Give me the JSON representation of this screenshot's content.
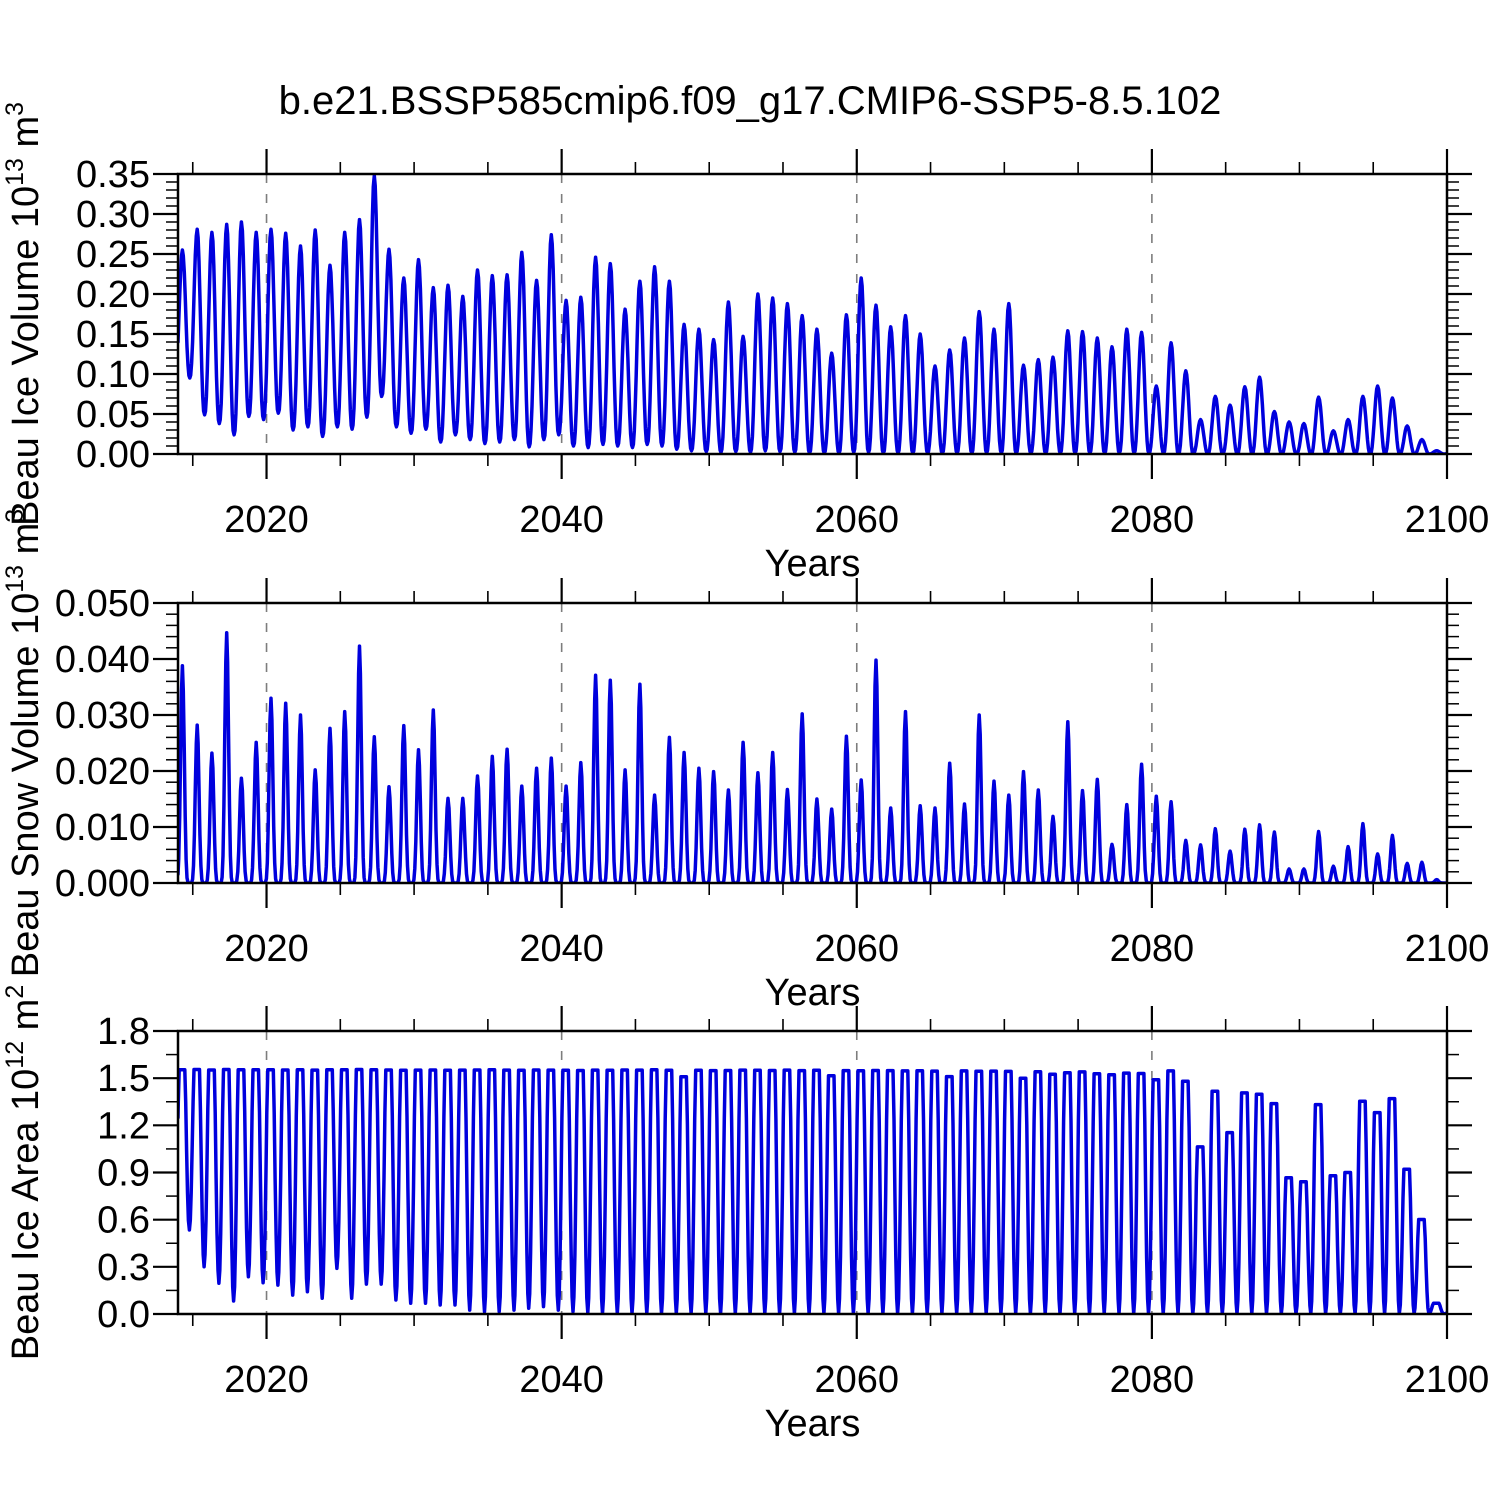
{
  "title": "b.e21.BSSP585cmip6.f09_g17.CMIP6-SSP5-8.5.102",
  "style": {
    "line_color": "#0000dd",
    "grid_color": "#7d7d7d",
    "axis_color": "#000000",
    "background": "#ffffff"
  },
  "chart_data": [
    {
      "type": "line",
      "panel": "beau-ice-volume",
      "ylabel": "Beau Ice Volume 10^{13} m^{3}",
      "xlabel": "Years",
      "xlim": [
        2014,
        2100
      ],
      "ylim": [
        0,
        0.35
      ],
      "grid": "vertical-dashed",
      "grid_years": [
        2020,
        2040,
        2060,
        2080
      ],
      "xticks_major": [
        2020,
        2040,
        2060,
        2080,
        2100
      ],
      "xtick_labels": [
        "2020",
        "2040",
        "2060",
        "2080",
        "2100"
      ],
      "xtick_minor_step": 5,
      "yticks_major": [
        0,
        0.05,
        0.1,
        0.15,
        0.2,
        0.25,
        0.3,
        0.35
      ],
      "ytick_labels": [
        "0.00",
        "0.05",
        "0.10",
        "0.15",
        "0.20",
        "0.25",
        "0.30",
        "0.35"
      ],
      "ytick_minor_step": 0.01,
      "years_start": 2014,
      "years_end": 2100,
      "annual_max": [
        0.255,
        0.281,
        0.277,
        0.287,
        0.29,
        0.277,
        0.281,
        0.276,
        0.26,
        0.28,
        0.236,
        0.277,
        0.293,
        0.348,
        0.256,
        0.22,
        0.243,
        0.208,
        0.211,
        0.197,
        0.23,
        0.223,
        0.224,
        0.252,
        0.217,
        0.274,
        0.192,
        0.196,
        0.246,
        0.238,
        0.181,
        0.216,
        0.234,
        0.216,
        0.162,
        0.156,
        0.143,
        0.19,
        0.147,
        0.2,
        0.195,
        0.188,
        0.173,
        0.156,
        0.126,
        0.174,
        0.22,
        0.186,
        0.159,
        0.173,
        0.15,
        0.11,
        0.13,
        0.145,
        0.178,
        0.156,
        0.188,
        0.111,
        0.118,
        0.121,
        0.154,
        0.153,
        0.145,
        0.134,
        0.156,
        0.152,
        0.085,
        0.139,
        0.104,
        0.043,
        0.072,
        0.061,
        0.084,
        0.096,
        0.053,
        0.04,
        0.038,
        0.071,
        0.029,
        0.043,
        0.072,
        0.085,
        0.07,
        0.035,
        0.018,
        0.004,
        0.002
      ],
      "annual_min": [
        0.095,
        0.049,
        0.038,
        0.024,
        0.047,
        0.043,
        0.051,
        0.03,
        0.034,
        0.022,
        0.034,
        0.031,
        0.046,
        0.072,
        0.034,
        0.026,
        0.031,
        0.015,
        0.024,
        0.018,
        0.013,
        0.015,
        0.018,
        0.009,
        0.018,
        0.024,
        0.01,
        0.008,
        0.012,
        0.01,
        0.008,
        0.012,
        0.01,
        0.006,
        0.004,
        0.003,
        0.002,
        0.003,
        0.002,
        0.004,
        0.003,
        0.002,
        0.001,
        0.001,
        0.001,
        0.002,
        0.002,
        0.001,
        0.001,
        0.001,
        0.001,
        0.001,
        0.001,
        0.001,
        0.001,
        0.001,
        0.001,
        0.001,
        0.001,
        0.001,
        0.001,
        0.001,
        0.001,
        0.001,
        0.001,
        0.001,
        0.001,
        0,
        0,
        0,
        0,
        0,
        0,
        0,
        0,
        0,
        0,
        0,
        0,
        0,
        0,
        0,
        0,
        0,
        0,
        0,
        0
      ],
      "shape": {
        "peak_phase": 0.3,
        "sharpness": 1.2,
        "overdrive": 1.0
      }
    },
    {
      "type": "line",
      "panel": "beau-snow-volume",
      "ylabel": "Beau Snow Volume 10^{13} m^{3}",
      "xlabel": "Years",
      "xlim": [
        2014,
        2100
      ],
      "ylim": [
        0,
        0.05
      ],
      "grid": "vertical-dashed",
      "grid_years": [
        2020,
        2040,
        2060,
        2080
      ],
      "xticks_major": [
        2020,
        2040,
        2060,
        2080,
        2100
      ],
      "xtick_labels": [
        "2020",
        "2040",
        "2060",
        "2080",
        "2100"
      ],
      "xtick_minor_step": 5,
      "yticks_major": [
        0,
        0.01,
        0.02,
        0.03,
        0.04,
        0.05
      ],
      "ytick_labels": [
        "0.000",
        "0.010",
        "0.020",
        "0.030",
        "0.040",
        "0.050"
      ],
      "ytick_minor_step": 0.002,
      "years_start": 2014,
      "years_end": 2100,
      "annual_max": [
        0.0388,
        0.0282,
        0.0232,
        0.0447,
        0.0187,
        0.0251,
        0.033,
        0.0321,
        0.03,
        0.0202,
        0.0276,
        0.0306,
        0.0423,
        0.0261,
        0.0172,
        0.0281,
        0.0238,
        0.0309,
        0.0151,
        0.0151,
        0.0191,
        0.0226,
        0.0239,
        0.0173,
        0.0205,
        0.0223,
        0.0173,
        0.0215,
        0.0371,
        0.0362,
        0.0202,
        0.0355,
        0.0157,
        0.026,
        0.0233,
        0.0205,
        0.0199,
        0.0166,
        0.0251,
        0.0197,
        0.0233,
        0.0167,
        0.0302,
        0.015,
        0.0132,
        0.0262,
        0.0184,
        0.0398,
        0.0134,
        0.0306,
        0.0138,
        0.0134,
        0.0214,
        0.0141,
        0.03,
        0.0182,
        0.0157,
        0.0199,
        0.0166,
        0.0119,
        0.0288,
        0.0165,
        0.0185,
        0.0069,
        0.014,
        0.0212,
        0.0155,
        0.0145,
        0.0076,
        0.0068,
        0.0097,
        0.0057,
        0.0096,
        0.0104,
        0.0091,
        0.0025,
        0.0025,
        0.0092,
        0.003,
        0.0065,
        0.0106,
        0.0052,
        0.0085,
        0.0035,
        0.0037,
        0.0006,
        0.0002
      ],
      "annual_min": 0,
      "shape": {
        "peak_phase": 0.3,
        "sharpness": 3.2,
        "overdrive": 1.0
      }
    },
    {
      "type": "line",
      "panel": "beau-ice-area",
      "ylabel": "Beau Ice Area 10^{12} m^{2}",
      "xlabel": "Years",
      "xlim": [
        2014,
        2100
      ],
      "ylim": [
        0,
        1.8
      ],
      "grid": "vertical-dashed",
      "grid_years": [
        2020,
        2040,
        2060,
        2080
      ],
      "xticks_major": [
        2020,
        2040,
        2060,
        2080,
        2100
      ],
      "xtick_labels": [
        "2020",
        "2040",
        "2060",
        "2080",
        "2100"
      ],
      "xtick_minor_step": 5,
      "yticks_major": [
        0,
        0.3,
        0.6,
        0.9,
        1.2,
        1.5,
        1.8
      ],
      "ytick_labels": [
        "0.0",
        "0.3",
        "0.6",
        "0.9",
        "1.2",
        "1.5",
        "1.8"
      ],
      "ytick_minor_step": 0.15,
      "years_start": 2014,
      "years_end": 2100,
      "annual_max": [
        1.553,
        1.555,
        1.552,
        1.555,
        1.554,
        1.553,
        1.554,
        1.552,
        1.553,
        1.551,
        1.554,
        1.553,
        1.555,
        1.554,
        1.552,
        1.55,
        1.551,
        1.552,
        1.55,
        1.551,
        1.552,
        1.553,
        1.551,
        1.55,
        1.552,
        1.551,
        1.55,
        1.549,
        1.551,
        1.55,
        1.552,
        1.551,
        1.553,
        1.55,
        1.509,
        1.55,
        1.548,
        1.549,
        1.551,
        1.55,
        1.549,
        1.551,
        1.548,
        1.55,
        1.515,
        1.548,
        1.547,
        1.549,
        1.548,
        1.546,
        1.547,
        1.545,
        1.51,
        1.546,
        1.544,
        1.545,
        1.543,
        1.5,
        1.541,
        1.525,
        1.535,
        1.54,
        1.528,
        1.522,
        1.532,
        1.53,
        1.49,
        1.546,
        1.48,
        1.063,
        1.417,
        1.154,
        1.406,
        1.398,
        1.338,
        0.866,
        0.841,
        1.332,
        0.879,
        0.9,
        1.353,
        1.281,
        1.37,
        0.921,
        0.601,
        0.068,
        0.01
      ],
      "annual_min": [
        0.534,
        0.3,
        0.195,
        0.083,
        0.237,
        0.199,
        0.184,
        0.12,
        0.142,
        0.1,
        0.29,
        0.1,
        0.19,
        0.19,
        0.089,
        0.068,
        0.068,
        0.057,
        0.057,
        0.025,
        0.015,
        0.015,
        0.025,
        0.036,
        0.047,
        0.025,
        0.015,
        0.008,
        0.004,
        0.004,
        0.004,
        0.004,
        0.004,
        0.004,
        0.004,
        0.004,
        0.004,
        0.004,
        0.004,
        0.004,
        0.004,
        0.004,
        0.004,
        0.004,
        0.004,
        0.004,
        0.004,
        0.003,
        0.003,
        0.003,
        0.003,
        0.003,
        0.003,
        0.003,
        0.003,
        0.003,
        0.003,
        0.003,
        0.003,
        0.003,
        0.003,
        0.003,
        0.003,
        0.003,
        0.003,
        0.003,
        0.003,
        0.002,
        0.002,
        0.002,
        0.002,
        0.002,
        0.002,
        0.002,
        0.002,
        0.002,
        0.002,
        0.002,
        0.002,
        0.002,
        0.002,
        0.002,
        0.002,
        0.002,
        0.002,
        0.001,
        0.001
      ],
      "shape": {
        "peak_phase": 0.27,
        "sharpness": 1.0,
        "overdrive": 1.6
      }
    }
  ]
}
